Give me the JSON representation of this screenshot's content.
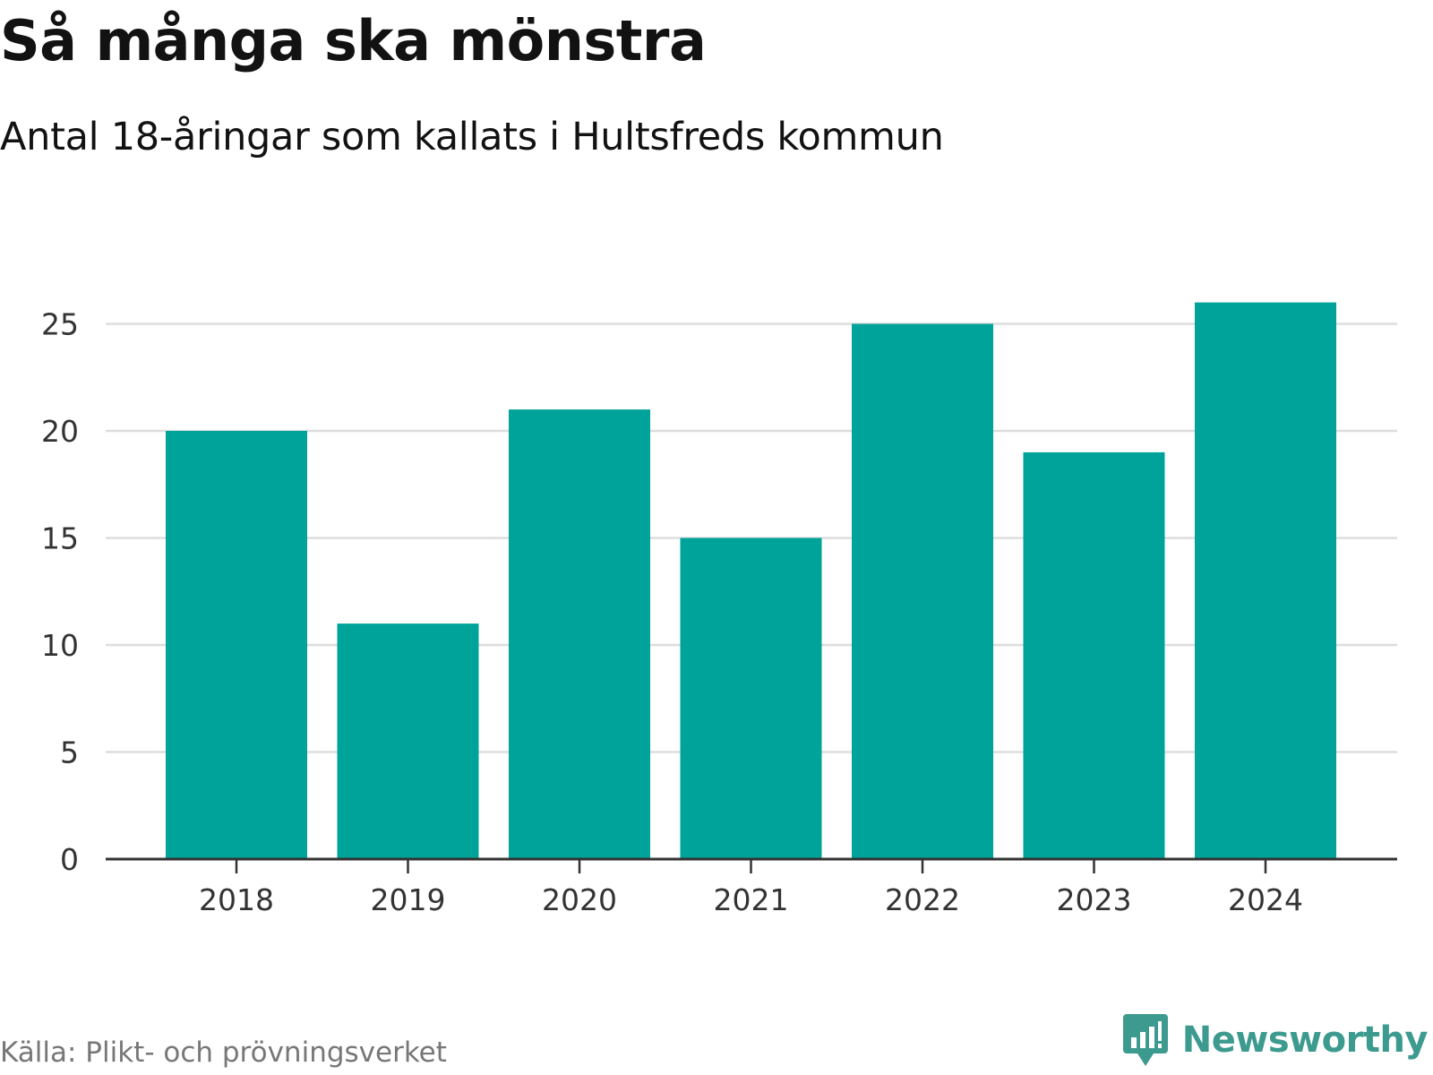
{
  "header": {
    "title": "Så många ska mönstra",
    "subtitle": "Antal 18-åringar som kallats i Hultsfreds kommun"
  },
  "footer": {
    "source": "Källa: Plikt- och prövningsverket",
    "brand": "Newsworthy",
    "brand_icon": "bar-chart-speech-bubble-icon"
  },
  "colors": {
    "bar": "#00a39a",
    "grid": "#dddddd",
    "axis": "#333333",
    "text": "#121212",
    "muted": "#777777",
    "brand": "#3d9a8f"
  },
  "chart_data": {
    "type": "bar",
    "title": "Så många ska mönstra",
    "subtitle": "Antal 18-åringar som kallats i Hultsfreds kommun",
    "xlabel": "",
    "ylabel": "",
    "categories": [
      "2018",
      "2019",
      "2020",
      "2021",
      "2022",
      "2023",
      "2024"
    ],
    "values": [
      20,
      11,
      21,
      15,
      25,
      19,
      26
    ],
    "ylim": [
      0,
      26
    ],
    "yticks": [
      0,
      5,
      10,
      15,
      20,
      25
    ],
    "grid": true,
    "legend": "none"
  }
}
